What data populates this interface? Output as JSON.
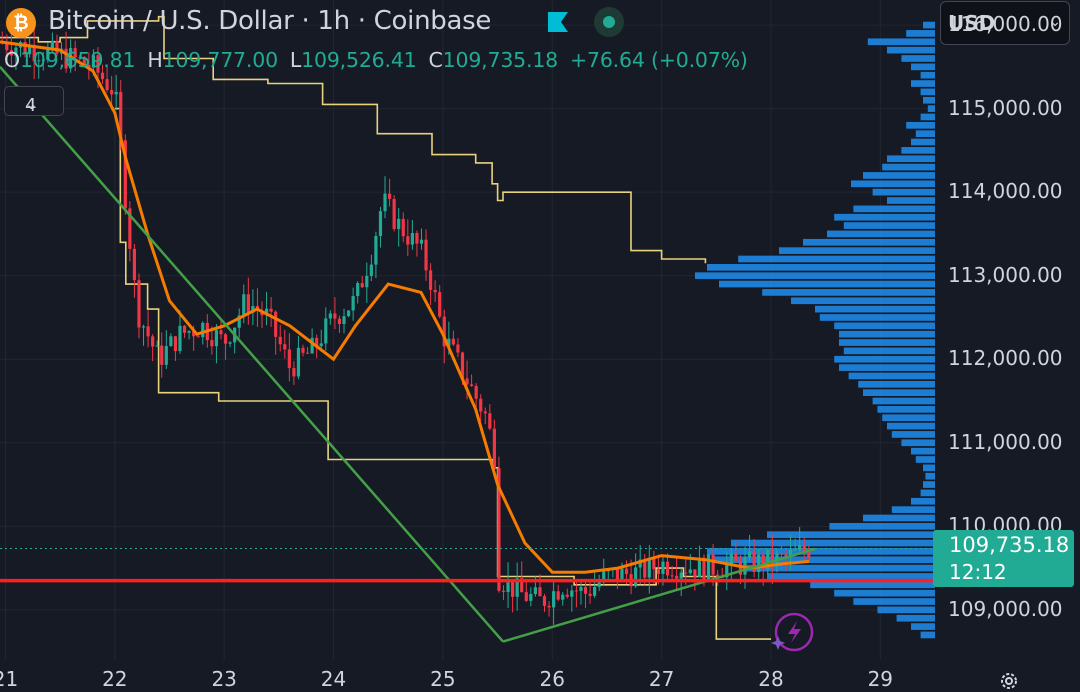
{
  "header": {
    "title": "Bitcoin / U.S. Dollar · 1h · Coinbase",
    "logo_glyph": "₿",
    "logo_color": "#f7931a",
    "currency": "USD"
  },
  "ohlc": {
    "o_label": "O",
    "o_value": "109,659.81",
    "h_label": "H",
    "h_value": "109,777.00",
    "l_label": "L",
    "l_value": "109,526.41",
    "c_label": "C",
    "c_value": "109,735.18",
    "change": "+76.64 (+0.07%)"
  },
  "indicators_toggle": {
    "count": "4"
  },
  "last_price": {
    "price": "109,735.18",
    "countdown": "12:12",
    "color": "#22ab94"
  },
  "colors": {
    "up": "#22ab94",
    "down": "#f23645",
    "ema": "#f57c00",
    "envelope": "#e8d27c",
    "trend": "#43a047",
    "hline": "#ff1f1f",
    "volume_profile": "#1e88e5"
  },
  "chart_data": {
    "type": "candlestick",
    "symbol": "Bitcoin / U.S. Dollar",
    "interval": "1h",
    "exchange": "Coinbase",
    "x_ticks": [
      "21",
      "22",
      "23",
      "24",
      "25",
      "26",
      "27",
      "28",
      "29"
    ],
    "y_ticks": [
      "116,000.00",
      "115,000.00",
      "114,000.00",
      "113,000.00",
      "112,000.00",
      "111,000.00",
      "110,000.00",
      "109,000.00"
    ],
    "y_tick_values": [
      116000,
      115000,
      114000,
      113000,
      112000,
      111000,
      110000,
      109000
    ],
    "x_range": [
      20.95,
      29.5
    ],
    "y_range": [
      108400,
      116300
    ],
    "price_path": [
      [
        20.95,
        115800
      ],
      [
        21.3,
        115700
      ],
      [
        21.6,
        115600
      ],
      [
        21.8,
        115500
      ],
      [
        22.0,
        115200
      ],
      [
        22.05,
        114600
      ],
      [
        22.1,
        113900
      ],
      [
        22.2,
        112600
      ],
      [
        22.4,
        112000
      ],
      [
        22.6,
        112300
      ],
      [
        22.8,
        112400
      ],
      [
        23.0,
        112200
      ],
      [
        23.2,
        112700
      ],
      [
        23.4,
        112500
      ],
      [
        23.6,
        111900
      ],
      [
        23.8,
        112100
      ],
      [
        24.0,
        112500
      ],
      [
        24.2,
        112700
      ],
      [
        24.35,
        113300
      ],
      [
        24.45,
        113900
      ],
      [
        24.6,
        113600
      ],
      [
        24.8,
        113300
      ],
      [
        24.9,
        112900
      ],
      [
        25.0,
        112300
      ],
      [
        25.2,
        111800
      ],
      [
        25.4,
        111300
      ],
      [
        25.48,
        110800
      ],
      [
        25.5,
        109400
      ],
      [
        25.7,
        109200
      ],
      [
        25.9,
        109100
      ],
      [
        26.1,
        109300
      ],
      [
        26.3,
        109200
      ],
      [
        26.5,
        109400
      ],
      [
        26.8,
        109450
      ],
      [
        27.0,
        109550
      ],
      [
        27.4,
        109500
      ],
      [
        27.8,
        109550
      ],
      [
        28.1,
        109600
      ],
      [
        28.3,
        109700
      ],
      [
        28.35,
        109735
      ]
    ],
    "ema_path": [
      [
        20.95,
        115800
      ],
      [
        21.5,
        115700
      ],
      [
        21.8,
        115450
      ],
      [
        22.0,
        114950
      ],
      [
        22.1,
        114400
      ],
      [
        22.3,
        113500
      ],
      [
        22.5,
        112700
      ],
      [
        22.75,
        112300
      ],
      [
        23.0,
        112400
      ],
      [
        23.3,
        112600
      ],
      [
        23.6,
        112400
      ],
      [
        24.0,
        112000
      ],
      [
        24.2,
        112400
      ],
      [
        24.5,
        112900
      ],
      [
        24.8,
        112800
      ],
      [
        25.0,
        112300
      ],
      [
        25.3,
        111400
      ],
      [
        25.5,
        110500
      ],
      [
        25.75,
        109800
      ],
      [
        26.0,
        109450
      ],
      [
        26.3,
        109450
      ],
      [
        26.6,
        109500
      ],
      [
        27.0,
        109650
      ],
      [
        27.4,
        109600
      ],
      [
        27.8,
        109500
      ],
      [
        28.1,
        109550
      ],
      [
        28.35,
        109580
      ]
    ],
    "upper_envelope": [
      [
        20.95,
        115850
      ],
      [
        21.3,
        115800
      ],
      [
        21.5,
        115850
      ],
      [
        21.75,
        116050
      ],
      [
        22.1,
        116050
      ],
      [
        22.4,
        116100
      ],
      [
        22.45,
        115600
      ],
      [
        22.9,
        115350
      ],
      [
        23.4,
        115300
      ],
      [
        23.9,
        115050
      ],
      [
        24.4,
        114700
      ],
      [
        24.9,
        114450
      ],
      [
        25.3,
        114350
      ],
      [
        25.45,
        114100
      ],
      [
        25.5,
        113900
      ],
      [
        25.55,
        114000
      ],
      [
        26.7,
        114000
      ],
      [
        26.72,
        113300
      ],
      [
        27.0,
        113200
      ],
      [
        27.4,
        113150
      ]
    ],
    "lower_envelope": [
      [
        22.0,
        115000
      ],
      [
        22.05,
        113400
      ],
      [
        22.1,
        112900
      ],
      [
        22.3,
        112600
      ],
      [
        22.4,
        111600
      ],
      [
        22.9,
        111600
      ],
      [
        22.95,
        111500
      ],
      [
        23.9,
        111500
      ],
      [
        23.95,
        110800
      ],
      [
        24.7,
        110800
      ],
      [
        25.1,
        110800
      ],
      [
        25.45,
        110700
      ],
      [
        25.5,
        109400
      ],
      [
        26.0,
        109400
      ],
      [
        26.2,
        109300
      ],
      [
        26.8,
        109300
      ],
      [
        26.95,
        109500
      ],
      [
        27.2,
        109400
      ],
      [
        27.5,
        108650
      ],
      [
        28.0,
        108650
      ]
    ],
    "trendline_down": [
      [
        20.95,
        115500
      ],
      [
        25.55,
        108620
      ]
    ],
    "trendline_up": [
      [
        25.55,
        108620
      ],
      [
        28.4,
        109730
      ]
    ],
    "horizontal_line": 109350,
    "last_price_line": 109735.18,
    "volume_profile": [
      [
        116000,
        0.05
      ],
      [
        115900,
        0.12
      ],
      [
        115800,
        0.28
      ],
      [
        115700,
        0.2
      ],
      [
        115600,
        0.14
      ],
      [
        115500,
        0.1
      ],
      [
        115400,
        0.06
      ],
      [
        115300,
        0.1
      ],
      [
        115200,
        0.06
      ],
      [
        115100,
        0.05
      ],
      [
        115000,
        0.03
      ],
      [
        114900,
        0.06
      ],
      [
        114800,
        0.12
      ],
      [
        114700,
        0.08
      ],
      [
        114600,
        0.1
      ],
      [
        114500,
        0.14
      ],
      [
        114400,
        0.2
      ],
      [
        114300,
        0.22
      ],
      [
        114200,
        0.3
      ],
      [
        114100,
        0.35
      ],
      [
        114000,
        0.26
      ],
      [
        113900,
        0.2
      ],
      [
        113800,
        0.34
      ],
      [
        113700,
        0.42
      ],
      [
        113600,
        0.38
      ],
      [
        113500,
        0.45
      ],
      [
        113400,
        0.55
      ],
      [
        113300,
        0.65
      ],
      [
        113200,
        0.82
      ],
      [
        113100,
        0.95
      ],
      [
        113000,
        1.0
      ],
      [
        112900,
        0.9
      ],
      [
        112800,
        0.72
      ],
      [
        112700,
        0.6
      ],
      [
        112600,
        0.5
      ],
      [
        112500,
        0.48
      ],
      [
        112400,
        0.42
      ],
      [
        112300,
        0.4
      ],
      [
        112200,
        0.4
      ],
      [
        112100,
        0.38
      ],
      [
        112000,
        0.42
      ],
      [
        111900,
        0.4
      ],
      [
        111800,
        0.36
      ],
      [
        111700,
        0.32
      ],
      [
        111600,
        0.3
      ],
      [
        111500,
        0.26
      ],
      [
        111400,
        0.24
      ],
      [
        111300,
        0.22
      ],
      [
        111200,
        0.2
      ],
      [
        111100,
        0.18
      ],
      [
        111000,
        0.14
      ],
      [
        110900,
        0.1
      ],
      [
        110800,
        0.08
      ],
      [
        110700,
        0.05
      ],
      [
        110600,
        0.04
      ],
      [
        110500,
        0.05
      ],
      [
        110400,
        0.06
      ],
      [
        110300,
        0.1
      ],
      [
        110200,
        0.18
      ],
      [
        110100,
        0.3
      ],
      [
        110000,
        0.44
      ],
      [
        109900,
        0.7
      ],
      [
        109800,
        0.85
      ],
      [
        109700,
        0.95
      ],
      [
        109600,
        0.92
      ],
      [
        109500,
        0.8
      ],
      [
        109400,
        0.7
      ],
      [
        109300,
        0.52
      ],
      [
        109200,
        0.42
      ],
      [
        109100,
        0.34
      ],
      [
        109000,
        0.24
      ],
      [
        108900,
        0.16
      ],
      [
        108800,
        0.1
      ],
      [
        108700,
        0.06
      ]
    ]
  }
}
